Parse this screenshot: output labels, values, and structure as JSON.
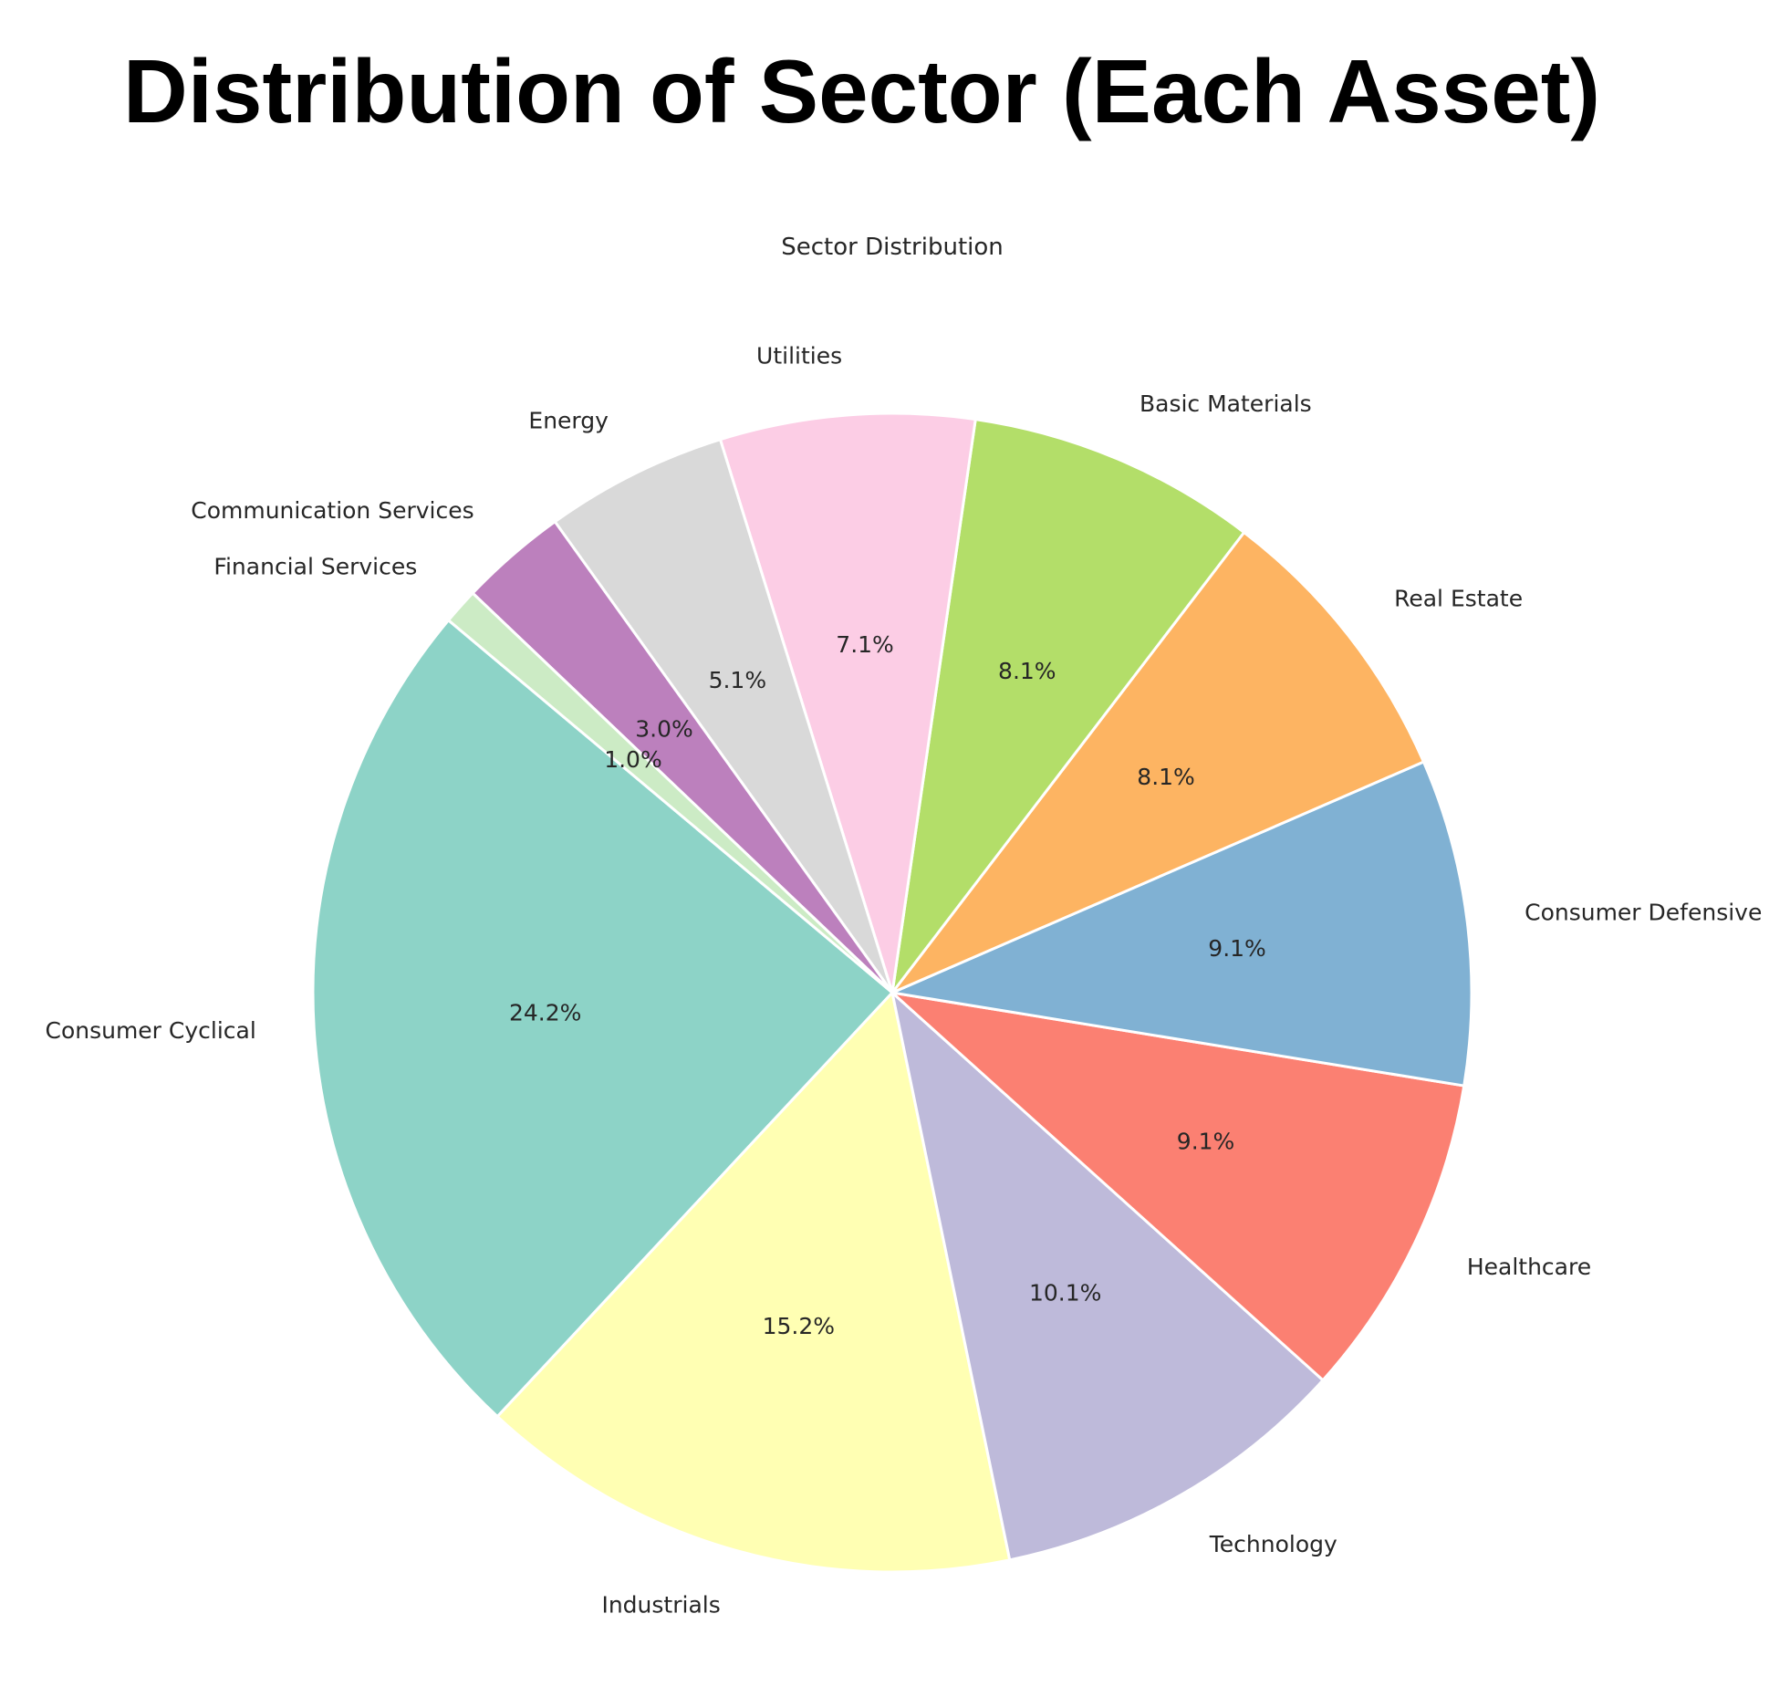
{
  "page": {
    "title": "Distribution of Sector (Each Asset)"
  },
  "chart_data": {
    "type": "pie",
    "title": "Sector Distribution",
    "start_angle_deg": 140,
    "direction": "counterclockwise",
    "slices": [
      {
        "label": "Consumer Cyclical",
        "value": 24.2,
        "pct_label": "24.2%",
        "color": "#8dd3c7"
      },
      {
        "label": "Industrials",
        "value": 15.2,
        "pct_label": "15.2%",
        "color": "#ffffb3"
      },
      {
        "label": "Technology",
        "value": 10.1,
        "pct_label": "10.1%",
        "color": "#bebada"
      },
      {
        "label": "Healthcare",
        "value": 9.1,
        "pct_label": "9.1%",
        "color": "#fb8072"
      },
      {
        "label": "Consumer Defensive",
        "value": 9.1,
        "pct_label": "9.1%",
        "color": "#80b1d3"
      },
      {
        "label": "Real Estate",
        "value": 8.1,
        "pct_label": "8.1%",
        "color": "#fdb462"
      },
      {
        "label": "Basic Materials",
        "value": 8.1,
        "pct_label": "8.1%",
        "color": "#b3de69"
      },
      {
        "label": "Utilities",
        "value": 7.1,
        "pct_label": "7.1%",
        "color": "#fccde5"
      },
      {
        "label": "Energy",
        "value": 5.1,
        "pct_label": "5.1%",
        "color": "#d9d9d9"
      },
      {
        "label": "Communication Services",
        "value": 3.0,
        "pct_label": "3.0%",
        "color": "#bc80bd"
      },
      {
        "label": "Financial Services",
        "value": 1.0,
        "pct_label": "1.0%",
        "color": "#ccebc5"
      }
    ]
  }
}
